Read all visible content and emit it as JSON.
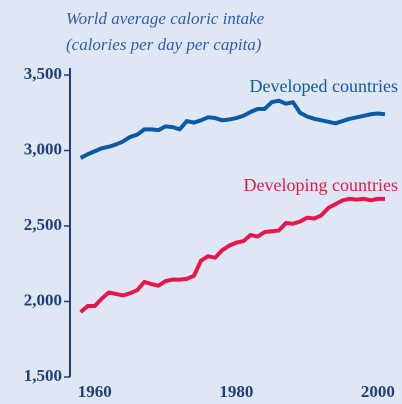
{
  "chart_data": {
    "type": "line",
    "title": "World average caloric intake",
    "subtitle": "(calories per day per capita)",
    "x": [
      1958,
      1959,
      1960,
      1961,
      1962,
      1963,
      1964,
      1965,
      1966,
      1967,
      1968,
      1969,
      1970,
      1971,
      1972,
      1973,
      1974,
      1975,
      1976,
      1977,
      1978,
      1979,
      1980,
      1981,
      1982,
      1983,
      1984,
      1985,
      1986,
      1987,
      1988,
      1989,
      1990,
      1991,
      1992,
      1993,
      1994,
      1995,
      1996,
      1997,
      1998,
      1999,
      2000,
      2001
    ],
    "series": [
      {
        "name": "Developed countries",
        "color": "#0b5aa6",
        "values": [
          2950,
          2975,
          2995,
          3015,
          3025,
          3040,
          3060,
          3090,
          3105,
          3140,
          3140,
          3135,
          3160,
          3155,
          3140,
          3195,
          3185,
          3200,
          3220,
          3215,
          3200,
          3205,
          3215,
          3230,
          3255,
          3275,
          3275,
          3320,
          3330,
          3310,
          3320,
          3250,
          3225,
          3210,
          3200,
          3190,
          3180,
          3195,
          3210,
          3220,
          3230,
          3240,
          3245,
          3240
        ]
      },
      {
        "name": "Developing countries",
        "color": "#e8174a",
        "values": [
          1930,
          1970,
          1970,
          2020,
          2060,
          2050,
          2040,
          2055,
          2075,
          2130,
          2115,
          2105,
          2135,
          2145,
          2145,
          2150,
          2170,
          2270,
          2300,
          2290,
          2340,
          2370,
          2390,
          2400,
          2440,
          2430,
          2460,
          2465,
          2470,
          2520,
          2515,
          2530,
          2555,
          2550,
          2570,
          2620,
          2645,
          2670,
          2680,
          2675,
          2680,
          2670,
          2680,
          2680
        ]
      }
    ],
    "xlim": [
      1956.5,
      2003.4
    ],
    "xticks": [
      1960,
      1980,
      2000
    ],
    "ylim": [
      1500,
      3500
    ],
    "yticks": [
      {
        "value": 1500,
        "label": "1,500"
      },
      {
        "value": 2000,
        "label": "2,000"
      },
      {
        "value": 2500,
        "label": "2,500"
      },
      {
        "value": 3000,
        "label": "3,000"
      },
      {
        "value": 3500,
        "label": "3,500"
      }
    ]
  }
}
